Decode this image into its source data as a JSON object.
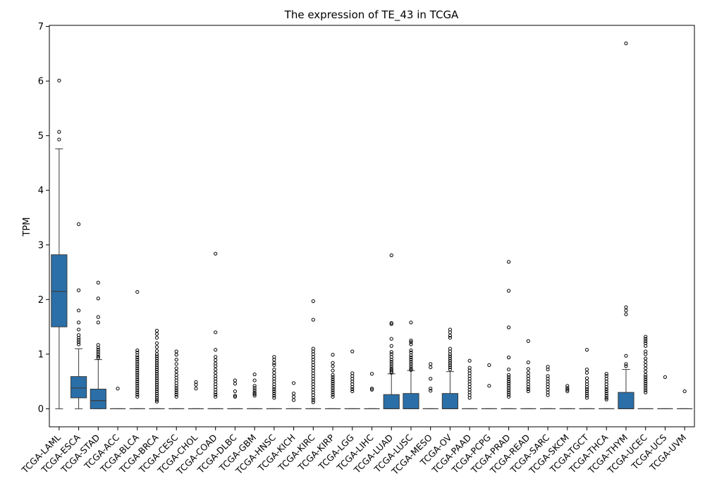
{
  "chart_data": {
    "type": "box",
    "title": "The expression of TE_43 in TCGA",
    "xlabel": "",
    "ylabel": "TPM",
    "ylim": [
      -0.33,
      7.02
    ],
    "yticks": [
      0,
      1,
      2,
      3,
      4,
      5,
      6,
      7
    ],
    "box_color": "#2a6fa8",
    "categories": [
      "TCGA-LAML",
      "TCGA-ESCA",
      "TCGA-STAD",
      "TCGA-ACC",
      "TCGA-BLCA",
      "TCGA-BRCA",
      "TCGA-CESC",
      "TCGA-CHOL",
      "TCGA-COAD",
      "TCGA-DLBC",
      "TCGA-GBM",
      "TCGA-HNSC",
      "TCGA-KICH",
      "TCGA-KIRC",
      "TCGA-KIRP",
      "TCGA-LGG",
      "TCGA-LIHC",
      "TCGA-LUAD",
      "TCGA-LUSC",
      "TCGA-MESO",
      "TCGA-OV",
      "TCGA-PAAD",
      "TCGA-PCPG",
      "TCGA-PRAD",
      "TCGA-READ",
      "TCGA-SARC",
      "TCGA-SKCM",
      "TCGA-TGCT",
      "TCGA-THCA",
      "TCGA-THYM",
      "TCGA-UCEC",
      "TCGA-UCS",
      "TCGA-UVM"
    ],
    "boxes": [
      {
        "name": "TCGA-LAML",
        "q1": 1.5,
        "median": 2.15,
        "q3": 2.82,
        "whislo": 0,
        "whishi": 4.76,
        "fliers": [
          6.01,
          5.07,
          4.93
        ]
      },
      {
        "name": "TCGA-ESCA",
        "q1": 0.2,
        "median": 0.38,
        "q3": 0.59,
        "whislo": 0,
        "whishi": 1.1,
        "fliers": [
          3.38,
          2.17,
          1.8,
          1.58,
          1.45,
          1.35,
          1.3,
          1.26,
          1.22,
          1.18
        ]
      },
      {
        "name": "TCGA-STAD",
        "q1": 0,
        "median": 0.15,
        "q3": 0.36,
        "whislo": 0,
        "whishi": 0.9,
        "fliers": [
          2.31,
          2.02,
          1.68,
          1.58,
          1.17,
          1.12,
          1.08,
          1.04,
          1.0,
          0.96,
          0.93
        ]
      },
      {
        "name": "TCGA-ACC",
        "q1": 0,
        "median": 0,
        "q3": 0,
        "whislo": 0,
        "whishi": 0,
        "fliers": [
          0.37
        ]
      },
      {
        "name": "TCGA-BLCA",
        "q1": 0,
        "median": 0,
        "q3": 0,
        "whislo": 0,
        "whishi": 0,
        "fliers": [
          2.14,
          1.07,
          1.03,
          0.98,
          0.94,
          0.9,
          0.86,
          0.82,
          0.78,
          0.74,
          0.7,
          0.66,
          0.62,
          0.58,
          0.54,
          0.5,
          0.46,
          0.42,
          0.38,
          0.34,
          0.3,
          0.26,
          0.22
        ]
      },
      {
        "name": "TCGA-BRCA",
        "q1": 0,
        "median": 0,
        "q3": 0,
        "whislo": 0,
        "whishi": 0,
        "fliers": [
          1.43,
          1.37,
          1.3,
          1.2,
          1.13,
          1.06,
          1.0,
          0.96,
          0.92,
          0.88,
          0.84,
          0.8,
          0.76,
          0.72,
          0.68,
          0.64,
          0.6,
          0.56,
          0.52,
          0.48,
          0.44,
          0.4,
          0.36,
          0.32,
          0.28,
          0.24,
          0.2,
          0.16,
          0.13
        ]
      },
      {
        "name": "TCGA-CESC",
        "q1": 0,
        "median": 0,
        "q3": 0,
        "whislo": 0,
        "whishi": 0,
        "fliers": [
          1.05,
          0.99,
          0.9,
          0.82,
          0.74,
          0.68,
          0.62,
          0.57,
          0.52,
          0.47,
          0.42,
          0.38,
          0.34,
          0.3,
          0.26,
          0.22
        ]
      },
      {
        "name": "TCGA-CHOL",
        "q1": 0,
        "median": 0,
        "q3": 0,
        "whislo": 0,
        "whishi": 0,
        "fliers": [
          0.49,
          0.44,
          0.37
        ]
      },
      {
        "name": "TCGA-COAD",
        "q1": 0,
        "median": 0,
        "q3": 0,
        "whislo": 0,
        "whishi": 0,
        "fliers": [
          2.84,
          1.4,
          1.08,
          0.95,
          0.89,
          0.83,
          0.78,
          0.72,
          0.66,
          0.6,
          0.55,
          0.5,
          0.45,
          0.4,
          0.35,
          0.3,
          0.26,
          0.22
        ]
      },
      {
        "name": "TCGA-DLBC",
        "q1": 0,
        "median": 0,
        "q3": 0,
        "whislo": 0,
        "whishi": 0,
        "fliers": [
          0.52,
          0.46,
          0.32,
          0.24,
          0.22
        ]
      },
      {
        "name": "TCGA-GBM",
        "q1": 0,
        "median": 0,
        "q3": 0,
        "whislo": 0,
        "whishi": 0,
        "fliers": [
          0.63,
          0.52,
          0.42,
          0.38,
          0.34,
          0.3,
          0.27,
          0.24
        ]
      },
      {
        "name": "TCGA-HNSC",
        "q1": 0,
        "median": 0,
        "q3": 0,
        "whislo": 0,
        "whishi": 0,
        "fliers": [
          0.95,
          0.9,
          0.84,
          0.8,
          0.72,
          0.66,
          0.6,
          0.55,
          0.5,
          0.45,
          0.4,
          0.36,
          0.32,
          0.28,
          0.24,
          0.2
        ]
      },
      {
        "name": "TCGA-KICH",
        "q1": 0,
        "median": 0,
        "q3": 0,
        "whislo": 0,
        "whishi": 0,
        "fliers": [
          0.47,
          0.28,
          0.22,
          0.16
        ]
      },
      {
        "name": "TCGA-KIRC",
        "q1": 0,
        "median": 0,
        "q3": 0,
        "whislo": 0,
        "whishi": 0,
        "fliers": [
          1.97,
          1.63,
          1.1,
          1.05,
          1.0,
          0.95,
          0.9,
          0.85,
          0.8,
          0.75,
          0.7,
          0.65,
          0.6,
          0.55,
          0.5,
          0.45,
          0.4,
          0.35,
          0.3,
          0.25,
          0.2,
          0.16,
          0.12
        ]
      },
      {
        "name": "TCGA-KIRP",
        "q1": 0,
        "median": 0,
        "q3": 0,
        "whislo": 0,
        "whishi": 0,
        "fliers": [
          0.99,
          0.84,
          0.78,
          0.7,
          0.62,
          0.58,
          0.54,
          0.5,
          0.46,
          0.42,
          0.38,
          0.34,
          0.3,
          0.26,
          0.22
        ]
      },
      {
        "name": "TCGA-LGG",
        "q1": 0,
        "median": 0,
        "q3": 0,
        "whislo": 0,
        "whishi": 0,
        "fliers": [
          1.05,
          0.65,
          0.6,
          0.55,
          0.5,
          0.45,
          0.4,
          0.36,
          0.32
        ]
      },
      {
        "name": "TCGA-LIHC",
        "q1": 0,
        "median": 0,
        "q3": 0,
        "whislo": 0,
        "whishi": 0,
        "fliers": [
          0.64,
          0.37,
          0.35
        ]
      },
      {
        "name": "TCGA-LUAD",
        "q1": 0,
        "median": 0,
        "q3": 0.26,
        "whislo": 0,
        "whishi": 0.64,
        "fliers": [
          2.81,
          1.57,
          1.55,
          1.28,
          1.15,
          1.04,
          1.0,
          0.95,
          0.9,
          0.86,
          0.82,
          0.78,
          0.74,
          0.71,
          0.68,
          0.66
        ]
      },
      {
        "name": "TCGA-LUSC",
        "q1": 0,
        "median": 0,
        "q3": 0.28,
        "whislo": 0,
        "whishi": 0.7,
        "fliers": [
          1.58,
          1.25,
          1.22,
          1.18,
          1.07,
          1.03,
          0.98,
          0.94,
          0.9,
          0.86,
          0.82,
          0.78,
          0.74,
          0.71
        ]
      },
      {
        "name": "TCGA-MESO",
        "q1": 0,
        "median": 0,
        "q3": 0,
        "whislo": 0,
        "whishi": 0,
        "fliers": [
          0.82,
          0.76,
          0.55,
          0.37,
          0.33
        ]
      },
      {
        "name": "TCGA-OV",
        "q1": 0,
        "median": 0,
        "q3": 0.28,
        "whislo": 0,
        "whishi": 0.68,
        "fliers": [
          1.45,
          1.4,
          1.34,
          1.3,
          1.1,
          1.05,
          1.0,
          0.96,
          0.92,
          0.88,
          0.84,
          0.8,
          0.76,
          0.72
        ]
      },
      {
        "name": "TCGA-PAAD",
        "q1": 0,
        "median": 0,
        "q3": 0,
        "whislo": 0,
        "whishi": 0,
        "fliers": [
          0.88,
          0.75,
          0.7,
          0.65,
          0.6,
          0.55,
          0.5,
          0.45,
          0.4,
          0.35,
          0.3,
          0.25,
          0.2
        ]
      },
      {
        "name": "TCGA-PCPG",
        "q1": 0,
        "median": 0,
        "q3": 0,
        "whislo": 0,
        "whishi": 0,
        "fliers": [
          0.8,
          0.42
        ]
      },
      {
        "name": "TCGA-PRAD",
        "q1": 0,
        "median": 0,
        "q3": 0,
        "whislo": 0,
        "whishi": 0,
        "fliers": [
          2.69,
          2.16,
          1.49,
          0.94,
          0.72,
          0.62,
          0.58,
          0.54,
          0.5,
          0.46,
          0.42,
          0.38,
          0.34,
          0.3,
          0.26,
          0.22
        ]
      },
      {
        "name": "TCGA-READ",
        "q1": 0,
        "median": 0,
        "q3": 0,
        "whislo": 0,
        "whishi": 0,
        "fliers": [
          1.24,
          0.85,
          0.73,
          0.66,
          0.6,
          0.55,
          0.5,
          0.45,
          0.4,
          0.36,
          0.32
        ]
      },
      {
        "name": "TCGA-SARC",
        "q1": 0,
        "median": 0,
        "q3": 0,
        "whislo": 0,
        "whishi": 0,
        "fliers": [
          0.77,
          0.72,
          0.6,
          0.55,
          0.5,
          0.45,
          0.4,
          0.35,
          0.3,
          0.25
        ]
      },
      {
        "name": "TCGA-SKCM",
        "q1": 0,
        "median": 0,
        "q3": 0,
        "whislo": 0,
        "whishi": 0,
        "fliers": [
          0.42,
          0.38,
          0.35,
          0.32
        ]
      },
      {
        "name": "TCGA-TGCT",
        "q1": 0,
        "median": 0,
        "q3": 0,
        "whislo": 0,
        "whishi": 0,
        "fliers": [
          1.08,
          0.72,
          0.66,
          0.56,
          0.5,
          0.45,
          0.4,
          0.36,
          0.32,
          0.28,
          0.24,
          0.2
        ]
      },
      {
        "name": "TCGA-THCA",
        "q1": 0,
        "median": 0,
        "q3": 0,
        "whislo": 0,
        "whishi": 0,
        "fliers": [
          0.64,
          0.6,
          0.55,
          0.5,
          0.45,
          0.4,
          0.36,
          0.32,
          0.28,
          0.24,
          0.2,
          0.17
        ]
      },
      {
        "name": "TCGA-THYM",
        "q1": 0,
        "median": 0,
        "q3": 0.3,
        "whislo": 0,
        "whishi": 0.72,
        "fliers": [
          6.69,
          1.86,
          1.8,
          1.73,
          0.97,
          0.82,
          0.78
        ]
      },
      {
        "name": "TCGA-UCEC",
        "q1": 0,
        "median": 0,
        "q3": 0,
        "whislo": 0,
        "whishi": 0,
        "fliers": [
          1.32,
          1.28,
          1.24,
          1.2,
          1.15,
          1.05,
          1.0,
          0.92,
          0.86,
          0.8,
          0.74,
          0.68,
          0.62,
          0.58,
          0.54,
          0.5,
          0.46,
          0.42,
          0.38,
          0.34,
          0.3
        ]
      },
      {
        "name": "TCGA-UCS",
        "q1": 0,
        "median": 0,
        "q3": 0,
        "whislo": 0,
        "whishi": 0,
        "fliers": [
          0.58
        ]
      },
      {
        "name": "TCGA-UVM",
        "q1": 0,
        "median": 0,
        "q3": 0,
        "whislo": 0,
        "whishi": 0,
        "fliers": [
          0.32
        ]
      }
    ]
  }
}
